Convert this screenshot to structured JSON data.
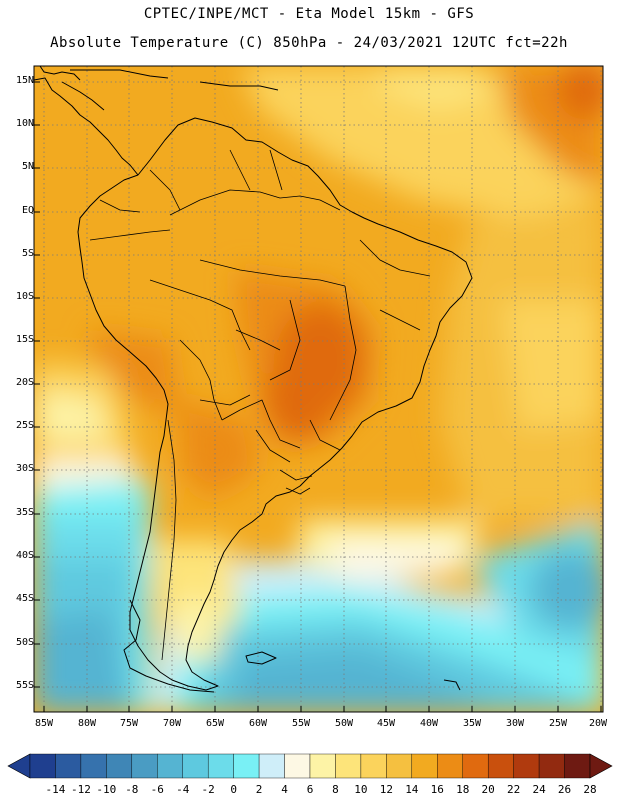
{
  "title_line1": "CPTEC/INPE/MCT -  Eta Model 15km - GFS",
  "title_line2": "Absolute Temperature (C) 850hPa - 24/03/2021 12UTC fct=22h",
  "lat_labels": [
    "15N",
    "10N",
    "5N",
    "EQ",
    "5S",
    "10S",
    "15S",
    "20S",
    "25S",
    "30S",
    "35S",
    "40S",
    "45S",
    "50S",
    "55S"
  ],
  "lon_labels": [
    "85W",
    "80W",
    "75W",
    "70W",
    "65W",
    "60W",
    "55W",
    "50W",
    "45W",
    "40W",
    "35W",
    "30W",
    "25W",
    "20W"
  ],
  "colorbar": {
    "labels": [
      "-14",
      "-12",
      "-10",
      "-8",
      "-6",
      "-4",
      "-2",
      "0",
      "2",
      "4",
      "6",
      "8",
      "10",
      "12",
      "14",
      "16",
      "18",
      "20",
      "22",
      "24",
      "26",
      "28"
    ],
    "colors": [
      "#1f3f8f",
      "#2b5ba0",
      "#3672ad",
      "#3f86b6",
      "#4a9cc3",
      "#55b4d2",
      "#5ec9df",
      "#6cdcea",
      "#79f0f5",
      "#cfeef9",
      "#fdf8e4",
      "#fdf3a6",
      "#fde47a",
      "#fbd35c",
      "#f5c040",
      "#f2aa20",
      "#ec8c15",
      "#e06a0f",
      "#c9500d",
      "#b03a0e",
      "#922a10",
      "#6e1a12"
    ],
    "extend_low": "#1f3f8f",
    "extend_high": "#6e1a12"
  }
}
